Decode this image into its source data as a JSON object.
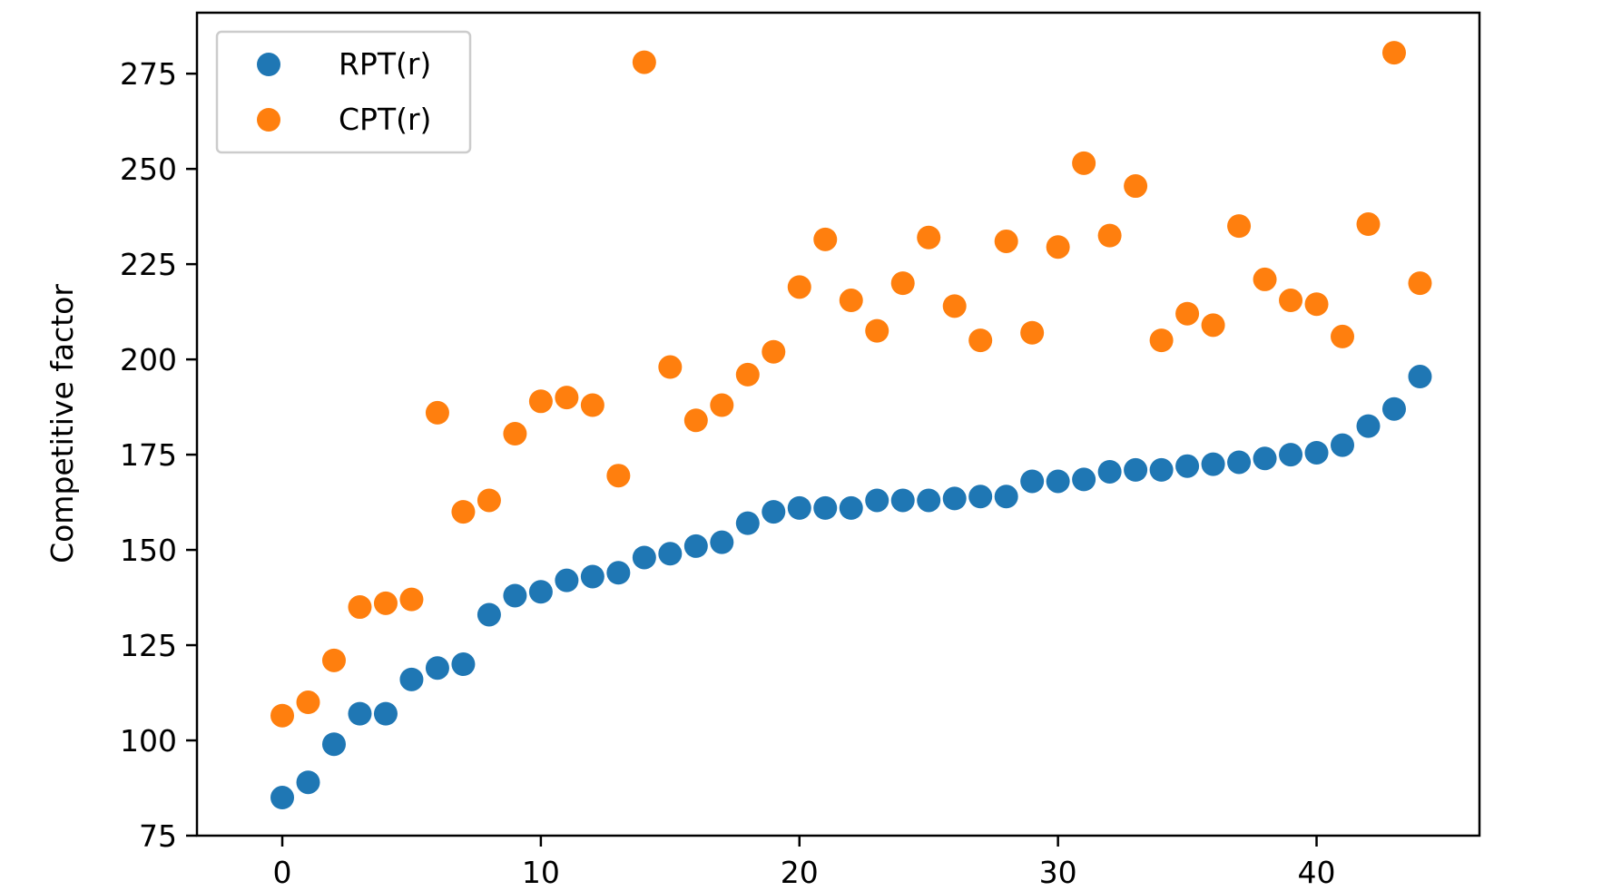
{
  "chart_data": {
    "type": "scatter",
    "title": "",
    "xlabel": "",
    "ylabel": "Competitive factor",
    "xlim": [
      -3.3,
      46.3
    ],
    "ylim": [
      75,
      291
    ],
    "xticks": [
      0,
      10,
      20,
      30,
      40
    ],
    "yticks": [
      75,
      100,
      125,
      150,
      175,
      200,
      225,
      250,
      275
    ],
    "grid": false,
    "legend_position": "top-left",
    "x": [
      0,
      1,
      2,
      3,
      4,
      5,
      6,
      7,
      8,
      9,
      10,
      11,
      12,
      13,
      14,
      15,
      16,
      17,
      18,
      19,
      20,
      21,
      22,
      23,
      24,
      25,
      26,
      27,
      28,
      29,
      30,
      31,
      32,
      33,
      34,
      35,
      36,
      37,
      38,
      39,
      40,
      41,
      42,
      43,
      44
    ],
    "series": [
      {
        "name": "RPT(r)",
        "color": "#1f77b4",
        "values": [
          85,
          89,
          99,
          107,
          107,
          116,
          119,
          120,
          133,
          138,
          139,
          142,
          143,
          144,
          148,
          149,
          151,
          152,
          157,
          160,
          161,
          161,
          161,
          163,
          163,
          163,
          163.5,
          164,
          164,
          168,
          168,
          168.5,
          170.5,
          171,
          171,
          172,
          172.5,
          173,
          174,
          175,
          175.5,
          177.5,
          182.5,
          187,
          195.5
        ]
      },
      {
        "name": "CPT(r)",
        "color": "#ff7f0e",
        "values": [
          106.5,
          110,
          121,
          135,
          136,
          137,
          186,
          160,
          163,
          180.5,
          189,
          190,
          188,
          169.5,
          278,
          198,
          184,
          188,
          196,
          202,
          219,
          231.5,
          215.5,
          207.5,
          220,
          232,
          214,
          205,
          231,
          207,
          229.5,
          251.5,
          232.5,
          245.5,
          205,
          212,
          209,
          235,
          221,
          215.5,
          214.5,
          206,
          235.5,
          280.5,
          220
        ]
      }
    ]
  }
}
